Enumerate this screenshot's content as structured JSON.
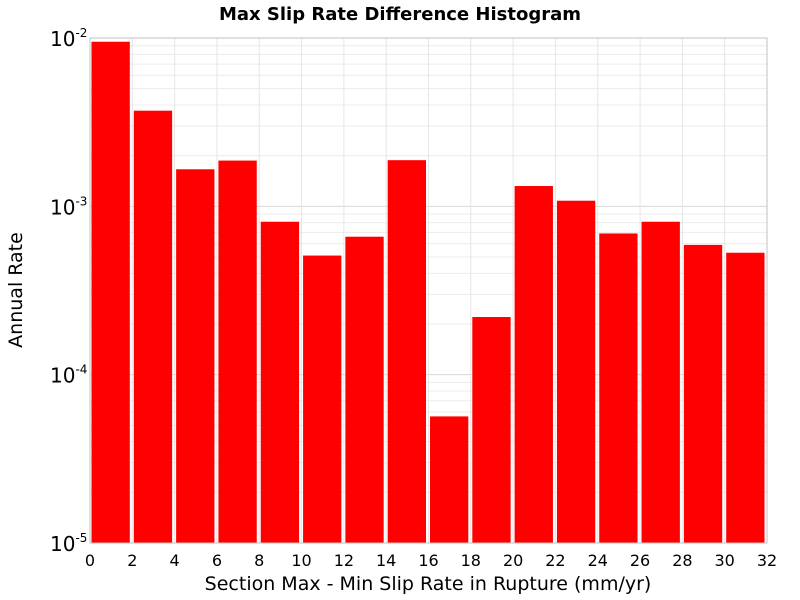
{
  "chart_data": {
    "type": "bar",
    "title": "Max Slip Rate Difference Histogram",
    "xlabel": "Section Max - Min Slip Rate in Rupture (mm/yr)",
    "ylabel": "Annual Rate",
    "y_scale": "log",
    "ylim": [
      1e-05,
      0.01
    ],
    "xlim": [
      0,
      32
    ],
    "x_ticks": [
      "0",
      "2",
      "4",
      "6",
      "8",
      "10",
      "12",
      "14",
      "16",
      "18",
      "20",
      "22",
      "24",
      "26",
      "28",
      "30",
      "32"
    ],
    "y_ticks": [
      {
        "base": "10",
        "exp": "-5",
        "value": 1e-05
      },
      {
        "base": "10",
        "exp": "-4",
        "value": 0.0001
      },
      {
        "base": "10",
        "exp": "-3",
        "value": 0.001
      },
      {
        "base": "10",
        "exp": "-2",
        "value": 0.01
      }
    ],
    "bins": [
      {
        "x0": 0,
        "x1": 2,
        "value": 0.0095
      },
      {
        "x0": 2,
        "x1": 4,
        "value": 0.0037
      },
      {
        "x0": 4,
        "x1": 6,
        "value": 0.00166
      },
      {
        "x0": 6,
        "x1": 8,
        "value": 0.00187
      },
      {
        "x0": 8,
        "x1": 10,
        "value": 0.00081
      },
      {
        "x0": 10,
        "x1": 12,
        "value": 0.00051
      },
      {
        "x0": 12,
        "x1": 14,
        "value": 0.00066
      },
      {
        "x0": 14,
        "x1": 16,
        "value": 0.00188
      },
      {
        "x0": 16,
        "x1": 18,
        "value": 5.65e-05
      },
      {
        "x0": 18,
        "x1": 20,
        "value": 0.00022
      },
      {
        "x0": 20,
        "x1": 22,
        "value": 0.00132
      },
      {
        "x0": 22,
        "x1": 24,
        "value": 0.00108
      },
      {
        "x0": 24,
        "x1": 26,
        "value": 0.00069
      },
      {
        "x0": 26,
        "x1": 28,
        "value": 0.00081
      },
      {
        "x0": 28,
        "x1": 30,
        "value": 0.00059
      },
      {
        "x0": 30,
        "x1": 32,
        "value": 0.00053
      }
    ],
    "bar_color": "#ff0000",
    "grid": true,
    "legend": "none"
  }
}
